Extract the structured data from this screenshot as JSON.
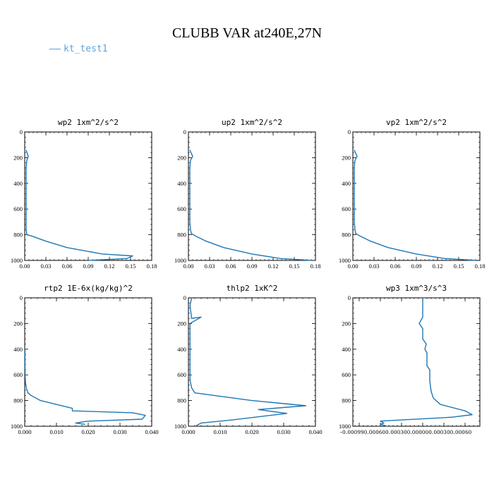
{
  "page": {
    "title": "CLUBB VAR at240E,27N",
    "legend_label": "kt_test1",
    "line_color": "#1f77b4",
    "legend_color": "#5fa2d9"
  },
  "chart_data": [
    {
      "type": "line",
      "title": "wp2   1xm^2/s^2",
      "xlim": [
        0,
        0.18
      ],
      "xticks": [
        0.0,
        0.03,
        0.06,
        0.09,
        0.12,
        0.15,
        0.18
      ],
      "xtick_labels": [
        "0.00",
        "0.03",
        "0.06",
        "0.09",
        "0.12",
        "0.15",
        "0.18"
      ],
      "ylim": [
        0,
        1000
      ],
      "yticks": [
        0,
        200,
        400,
        600,
        800,
        1000
      ],
      "ytick_labels": [
        "0",
        "200",
        "400",
        "600",
        "800",
        "1000"
      ],
      "series": [
        {
          "x": [
            0.002,
            0.005,
            0.003,
            0.002,
            0.002,
            0.002,
            0.002,
            0.002,
            0.002,
            0.003,
            0.01,
            0.03,
            0.06,
            0.11,
            0.153,
            0.145,
            0.09
          ],
          "y": [
            140,
            190,
            220,
            280,
            380,
            500,
            600,
            700,
            760,
            800,
            810,
            850,
            900,
            950,
            965,
            985,
            1000
          ]
        }
      ]
    },
    {
      "type": "line",
      "title": "up2   1xm^2/s^2",
      "xlim": [
        0,
        0.18
      ],
      "xticks": [
        0.0,
        0.03,
        0.06,
        0.09,
        0.12,
        0.15,
        0.18
      ],
      "xtick_labels": [
        "0.00",
        "0.03",
        "0.06",
        "0.09",
        "0.12",
        "0.15",
        "0.18"
      ],
      "ylim": [
        0,
        1000
      ],
      "yticks": [
        0,
        200,
        400,
        600,
        800,
        1000
      ],
      "ytick_labels": [
        "0",
        "200",
        "400",
        "600",
        "800",
        "1000"
      ],
      "series": [
        {
          "x": [
            0.002,
            0.006,
            0.003,
            0.002,
            0.002,
            0.002,
            0.002,
            0.002,
            0.003,
            0.004,
            0.01,
            0.025,
            0.05,
            0.09,
            0.13,
            0.175
          ],
          "y": [
            140,
            190,
            220,
            280,
            380,
            500,
            600,
            700,
            760,
            790,
            810,
            850,
            900,
            950,
            985,
            1000
          ]
        }
      ]
    },
    {
      "type": "line",
      "title": "vp2   1xm^2/s^2",
      "xlim": [
        0,
        0.18
      ],
      "xticks": [
        0.0,
        0.03,
        0.06,
        0.09,
        0.12,
        0.15,
        0.18
      ],
      "xtick_labels": [
        "0.00",
        "0.03",
        "0.06",
        "0.09",
        "0.12",
        "0.15",
        "0.18"
      ],
      "ylim": [
        0,
        1000
      ],
      "yticks": [
        0,
        200,
        400,
        600,
        800,
        1000
      ],
      "ytick_labels": [
        "0",
        "200",
        "400",
        "600",
        "800",
        "1000"
      ],
      "series": [
        {
          "x": [
            0.002,
            0.006,
            0.003,
            0.002,
            0.002,
            0.002,
            0.002,
            0.002,
            0.003,
            0.004,
            0.01,
            0.025,
            0.05,
            0.09,
            0.13,
            0.175
          ],
          "y": [
            140,
            190,
            220,
            280,
            380,
            500,
            600,
            700,
            760,
            790,
            810,
            850,
            900,
            950,
            985,
            1000
          ]
        }
      ]
    },
    {
      "type": "line",
      "title": "rtp2   1E-6x(kg/kg)^2",
      "xlim": [
        0,
        0.04
      ],
      "xticks": [
        0.0,
        0.01,
        0.02,
        0.03,
        0.04
      ],
      "xtick_labels": [
        "0.000",
        "0.010",
        "0.020",
        "0.030",
        "0.040"
      ],
      "ylim": [
        0,
        1000
      ],
      "yticks": [
        0,
        200,
        400,
        600,
        800,
        1000
      ],
      "ytick_labels": [
        "0",
        "200",
        "400",
        "600",
        "800",
        "1000"
      ],
      "series": [
        {
          "x": [
            0.0001,
            0.0001,
            0.0002,
            0.0005,
            0.001,
            0.002,
            0.005,
            0.015,
            0.015,
            0.034,
            0.038,
            0.037,
            0.02,
            0.016,
            0.019
          ],
          "y": [
            400,
            550,
            650,
            700,
            740,
            760,
            800,
            860,
            880,
            895,
            915,
            945,
            960,
            975,
            985
          ]
        }
      ]
    },
    {
      "type": "line",
      "title": "thlp2   1xK^2",
      "xlim": [
        0,
        0.04
      ],
      "xticks": [
        0.0,
        0.01,
        0.02,
        0.03,
        0.04
      ],
      "xtick_labels": [
        "0.000",
        "0.010",
        "0.020",
        "0.030",
        "0.040"
      ],
      "ylim": [
        0,
        1000
      ],
      "yticks": [
        0,
        200,
        400,
        600,
        800,
        1000
      ],
      "ytick_labels": [
        "0",
        "200",
        "400",
        "600",
        "800",
        "1000"
      ],
      "series": [
        {
          "x": [
            0.001,
            0.0005,
            0.001,
            0.004,
            0.0005,
            0.0005,
            0.0005,
            0.001,
            0.002,
            0.02,
            0.037,
            0.022,
            0.031,
            0.014,
            0.004,
            0.0025
          ],
          "y": [
            0,
            60,
            160,
            150,
            200,
            400,
            640,
            700,
            740,
            800,
            840,
            870,
            900,
            950,
            975,
            995
          ]
        }
      ]
    },
    {
      "type": "line",
      "title": "wp3   1xm^3/s^3",
      "xlim": [
        -0.00099,
        0.00081
      ],
      "xticks": [
        -0.0009,
        -0.0006,
        -0.0003,
        0.0,
        0.0003,
        0.0006
      ],
      "xtick_labels": [
        "-0.000990.000600.000300.000000.000300.00060",
        "",
        "",
        "",
        "",
        ""
      ],
      "ylim": [
        0,
        1000
      ],
      "yticks": [
        0,
        200,
        400,
        600,
        800,
        1000
      ],
      "ytick_labels": [
        "0",
        "200",
        "400",
        "600",
        "800",
        "1000"
      ],
      "series": [
        {
          "x": [
            0.0,
            0.0,
            -5e-05,
            0.0,
            0.0,
            5e-05,
            3e-05,
            6e-05,
            6e-05,
            0.0001,
            0.0001,
            0.00012,
            0.00015,
            0.00025,
            0.0006,
            0.0007,
            0.0004,
            -0.0006,
            -0.00055,
            -0.0006,
            -0.0005
          ],
          "y": [
            0,
            150,
            200,
            240,
            320,
            360,
            400,
            430,
            530,
            560,
            650,
            730,
            780,
            830,
            880,
            910,
            930,
            960,
            975,
            985,
            1000
          ]
        }
      ]
    }
  ]
}
